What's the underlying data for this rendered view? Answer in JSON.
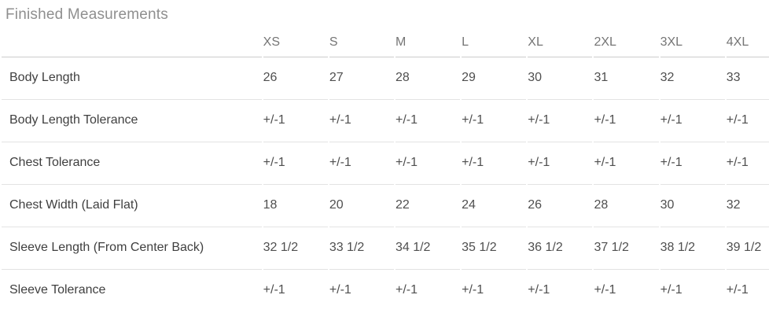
{
  "title": "Finished Measurements",
  "table": {
    "size_headers": [
      "XS",
      "S",
      "M",
      "L",
      "XL",
      "2XL",
      "3XL",
      "4XL"
    ],
    "rows": [
      {
        "label": "Body Length",
        "values": [
          "26",
          "27",
          "28",
          "29",
          "30",
          "31",
          "32",
          "33"
        ]
      },
      {
        "label": "Body Length Tolerance",
        "values": [
          "+/-1",
          "+/-1",
          "+/-1",
          "+/-1",
          "+/-1",
          "+/-1",
          "+/-1",
          "+/-1"
        ]
      },
      {
        "label": "Chest Tolerance",
        "values": [
          "+/-1",
          "+/-1",
          "+/-1",
          "+/-1",
          "+/-1",
          "+/-1",
          "+/-1",
          "+/-1"
        ]
      },
      {
        "label": "Chest Width (Laid Flat)",
        "values": [
          "18",
          "20",
          "22",
          "24",
          "26",
          "28",
          "30",
          "32"
        ]
      },
      {
        "label": "Sleeve Length (From Center Back)",
        "values": [
          "32 1/2",
          "33 1/2",
          "34 1/2",
          "35 1/2",
          "36 1/2",
          "37 1/2",
          "38 1/2",
          "39 1/2"
        ]
      },
      {
        "label": "Sleeve Tolerance",
        "values": [
          "+/-1",
          "+/-1",
          "+/-1",
          "+/-1",
          "+/-1",
          "+/-1",
          "+/-1",
          "+/-1"
        ]
      }
    ]
  },
  "colors": {
    "background": "#ffffff",
    "title_text": "#8f8f8f",
    "header_text": "#757575",
    "label_text": "#3f3f3f",
    "value_text": "#4f4f4f",
    "header_border": "#cbcbcb",
    "row_border": "#e3e3e3"
  }
}
